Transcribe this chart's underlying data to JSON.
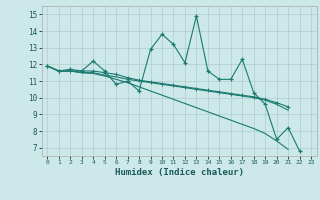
{
  "xlabel": "Humidex (Indice chaleur)",
  "background_color": "#cde8e8",
  "line_color": "#1a7a70",
  "grid_color": "#b0cccc",
  "xlim": [
    -0.5,
    23.5
  ],
  "ylim": [
    6.5,
    15.5
  ],
  "yticks": [
    7,
    8,
    9,
    10,
    11,
    12,
    13,
    14,
    15
  ],
  "xticks": [
    0,
    1,
    2,
    3,
    4,
    5,
    6,
    7,
    8,
    9,
    10,
    11,
    12,
    13,
    14,
    15,
    16,
    17,
    18,
    19,
    20,
    21,
    22,
    23
  ],
  "series1": [
    11.9,
    11.6,
    11.7,
    11.6,
    12.2,
    11.6,
    10.8,
    11.0,
    10.4,
    12.9,
    13.8,
    13.2,
    12.1,
    14.9,
    11.6,
    11.1,
    11.1,
    12.3,
    10.3,
    9.6,
    7.5,
    8.2,
    6.8,
    null
  ],
  "series2": [
    11.9,
    11.6,
    11.6,
    11.6,
    11.6,
    11.5,
    11.4,
    11.2,
    11.05,
    10.95,
    10.85,
    10.75,
    10.65,
    10.55,
    10.45,
    10.35,
    10.25,
    10.15,
    10.05,
    9.9,
    9.7,
    9.45,
    null,
    null
  ],
  "series3": [
    11.9,
    11.6,
    11.6,
    11.5,
    11.5,
    11.35,
    11.25,
    11.1,
    11.0,
    10.9,
    10.8,
    10.7,
    10.6,
    10.5,
    10.4,
    10.3,
    10.2,
    10.1,
    10.0,
    9.85,
    9.6,
    9.25,
    null,
    null
  ],
  "series4": [
    11.9,
    11.6,
    11.6,
    11.5,
    11.45,
    11.3,
    11.1,
    10.9,
    10.65,
    10.4,
    10.15,
    9.9,
    9.65,
    9.4,
    9.15,
    8.9,
    8.65,
    8.4,
    8.15,
    7.85,
    7.4,
    6.9,
    null,
    null
  ],
  "x": [
    0,
    1,
    2,
    3,
    4,
    5,
    6,
    7,
    8,
    9,
    10,
    11,
    12,
    13,
    14,
    15,
    16,
    17,
    18,
    19,
    20,
    21,
    22,
    23
  ]
}
